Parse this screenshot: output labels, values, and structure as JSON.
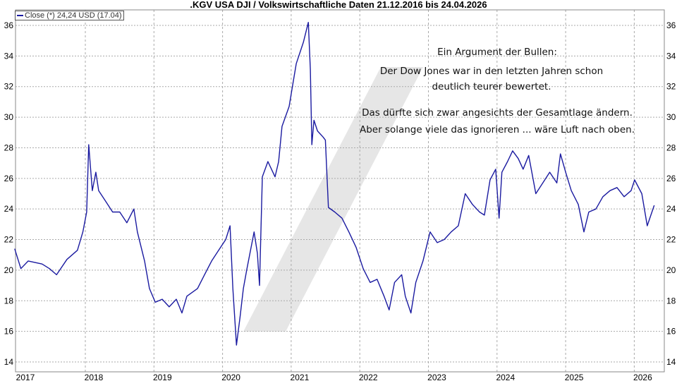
{
  "chart_data": {
    "type": "line",
    "title": ".KGV USA DJI / Volkswirtschaftliche Daten 21.12.2016 bis 24.04.2026",
    "xlabel": "",
    "ylabel": "",
    "ylim": [
      14,
      36
    ],
    "yticks": [
      14,
      16,
      18,
      20,
      22,
      24,
      26,
      28,
      30,
      32,
      34,
      36
    ],
    "xticks": [
      "2017",
      "2018",
      "2019",
      "2020",
      "2021",
      "2022",
      "2023",
      "2024",
      "2025",
      "2026"
    ],
    "grid": true,
    "legend_position": "top-left",
    "legend": "Close (*) 24,24 USD (17.04)",
    "series_color": "#1a1aa0",
    "series": [
      {
        "name": "Close (*)",
        "x": [
          "2016-12-21",
          "2017-01-23",
          "2017-03-03",
          "2017-05-16",
          "2017-06-24",
          "2017-08-01",
          "2017-09-25",
          "2017-11-20",
          "2017-12-19",
          "2018-01-08",
          "2018-01-19",
          "2018-02-07",
          "2018-02-26",
          "2018-03-13",
          "2018-04-19",
          "2018-05-26",
          "2018-07-03",
          "2018-08-10",
          "2018-09-16",
          "2018-10-05",
          "2018-11-12",
          "2018-12-08",
          "2019-01-08",
          "2019-02-14",
          "2019-03-23",
          "2019-04-30",
          "2019-05-30",
          "2019-06-25",
          "2019-08-21",
          "2019-09-27",
          "2019-11-04",
          "2019-12-11",
          "2020-01-18",
          "2020-02-10",
          "2020-02-25",
          "2020-03-15",
          "2020-04-03",
          "2020-04-21",
          "2020-05-10",
          "2020-06-17",
          "2020-07-05",
          "2020-07-16",
          "2020-07-31",
          "2020-08-30",
          "2020-10-07",
          "2020-10-26",
          "2020-11-13",
          "2020-12-21",
          "2021-01-09",
          "2021-01-28",
          "2021-03-07",
          "2021-04-02",
          "2021-04-13",
          "2021-04-21",
          "2021-05-02",
          "2021-05-21",
          "2021-06-20",
          "2021-07-02",
          "2021-07-18",
          "2021-08-21",
          "2021-09-28",
          "2021-11-04",
          "2021-12-12",
          "2022-01-19",
          "2022-02-25",
          "2022-04-03",
          "2022-05-10",
          "2022-06-06",
          "2022-07-05",
          "2022-08-12",
          "2022-08-31",
          "2022-09-30",
          "2022-10-26",
          "2022-12-03",
          "2023-01-10",
          "2023-02-17",
          "2023-03-26",
          "2023-05-02",
          "2023-06-09",
          "2023-07-16",
          "2023-08-23",
          "2023-09-30",
          "2023-10-26",
          "2023-11-25",
          "2023-12-25",
          "2024-01-12",
          "2024-01-27",
          "2024-02-26",
          "2024-03-24",
          "2024-04-23",
          "2024-05-19",
          "2024-06-18",
          "2024-07-26",
          "2024-09-01",
          "2024-10-08",
          "2024-11-15",
          "2024-12-04",
          "2025-01-01",
          "2025-01-31",
          "2025-03-09",
          "2025-04-08",
          "2025-05-04",
          "2025-06-11",
          "2025-07-18",
          "2025-08-25",
          "2025-10-01",
          "2025-11-08",
          "2025-12-15",
          "2026-01-03",
          "2026-02-10",
          "2026-03-11",
          "2026-04-17"
        ],
        "values": [
          21.4,
          20.1,
          20.6,
          20.4,
          20.1,
          19.7,
          20.7,
          21.3,
          22.5,
          23.8,
          28.2,
          25.2,
          26.4,
          25.2,
          24.5,
          23.8,
          23.8,
          23.1,
          24.0,
          22.5,
          20.6,
          18.8,
          17.9,
          18.1,
          17.6,
          18.1,
          17.2,
          18.3,
          18.8,
          19.7,
          20.6,
          21.3,
          22.0,
          22.9,
          18.8,
          15.1,
          16.9,
          18.8,
          20.1,
          22.5,
          21.1,
          19.0,
          26.1,
          27.1,
          26.1,
          27.1,
          29.4,
          30.7,
          32.1,
          33.5,
          34.9,
          36.2,
          33.1,
          28.2,
          29.8,
          29.1,
          28.7,
          28.5,
          24.1,
          23.8,
          23.4,
          22.5,
          21.5,
          20.1,
          19.2,
          19.4,
          18.3,
          17.4,
          19.2,
          19.7,
          18.3,
          17.2,
          19.2,
          20.6,
          22.5,
          21.8,
          22.0,
          22.5,
          22.9,
          25.0,
          24.3,
          23.8,
          23.6,
          25.9,
          26.6,
          23.4,
          26.4,
          27.1,
          27.8,
          27.3,
          26.6,
          27.5,
          25.0,
          25.7,
          26.4,
          25.7,
          27.6,
          26.4,
          25.2,
          24.3,
          22.5,
          23.8,
          24.0,
          24.8,
          25.2,
          25.4,
          24.8,
          25.2,
          25.9,
          25.0,
          22.9,
          24.24
        ]
      }
    ]
  },
  "annotation": {
    "line1": "Ein Argument der Bullen:",
    "line2": "Der Dow Jones war in den letzten Jahren schon",
    "line3": "deutlich teurer bewertet.",
    "line4": "Das dürfte sich zwar angesichts der Gesamtlage ändern.",
    "line5": "Aber solange viele das ignorieren ... wäre Luft nach oben."
  }
}
